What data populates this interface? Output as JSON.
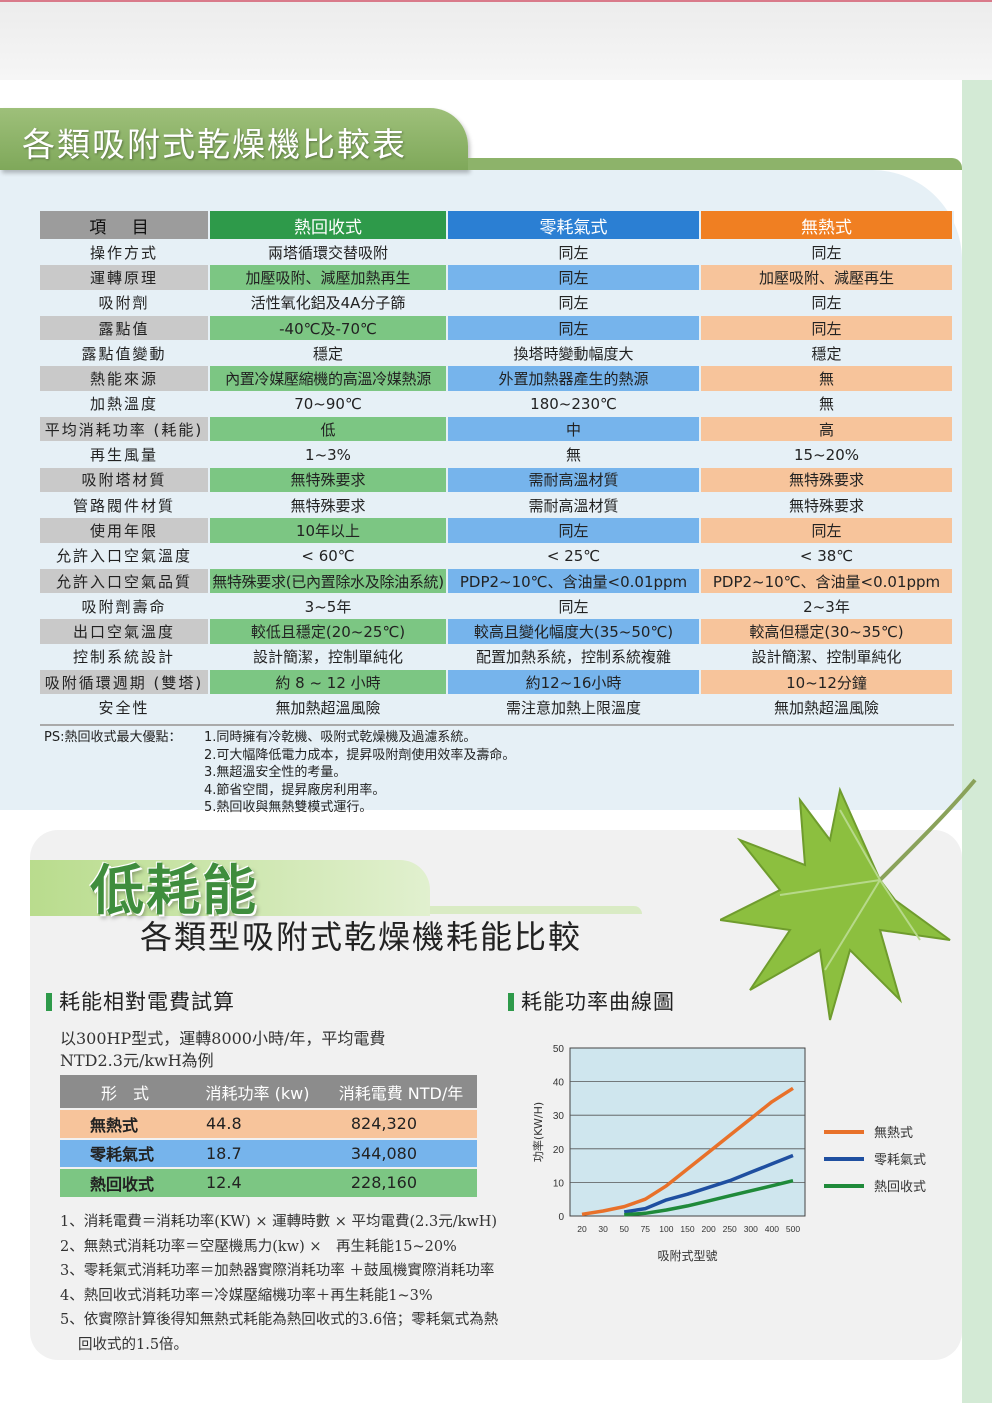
{
  "section1": {
    "title": "各類吸附式乾燥機比較表",
    "headers": [
      "項 目",
      "熱回收式",
      "零耗氣式",
      "無熱式"
    ],
    "rows": [
      [
        "操作方式",
        "兩塔循環交替吸附",
        "同左",
        "同左"
      ],
      [
        "運轉原理",
        "加壓吸附、減壓加熱再生",
        "同左",
        "加壓吸附、減壓再生"
      ],
      [
        "吸附劑",
        "活性氧化鋁及4A分子篩",
        "同左",
        "同左"
      ],
      [
        "露點值",
        "-40℃及-70℃",
        "同左",
        "同左"
      ],
      [
        "露點值變動",
        "穩定",
        "換塔時變動幅度大",
        "穩定"
      ],
      [
        "熱能來源",
        "內置冷媒壓縮機的高溫冷媒熱源",
        "外置加熱器產生的熱源",
        "無"
      ],
      [
        "加熱溫度",
        "70~90℃",
        "180~230℃",
        "無"
      ],
      [
        "平均消耗功率 (耗能)",
        "低",
        "中",
        "高"
      ],
      [
        "再生風量",
        "1~3%",
        "無",
        "15~20%"
      ],
      [
        "吸附塔材質",
        "無特殊要求",
        "需耐高溫材質",
        "無特殊要求"
      ],
      [
        "管路閥件材質",
        "無特殊要求",
        "需耐高溫材質",
        "無特殊要求"
      ],
      [
        "使用年限",
        "10年以上",
        "同左",
        "同左"
      ],
      [
        "允許入口空氣溫度",
        "< 60℃",
        "< 25℃",
        "< 38℃"
      ],
      [
        "允許入口空氣品質",
        "無特殊要求(已內置除水及除油系統)",
        "PDP2~10℃、含油量<0.01ppm",
        "PDP2~10℃、含油量<0.01ppm"
      ],
      [
        "吸附劑壽命",
        "3~5年",
        "同左",
        "2~3年"
      ],
      [
        "出口空氣溫度",
        "較低且穩定(20~25℃)",
        "較高且變化幅度大(35~50℃)",
        "較高但穩定(30~35℃)"
      ],
      [
        "控制系統設計",
        "設計簡潔，控制單純化",
        "配置加熱系統，控制系統複雜",
        "設計簡潔、控制單純化"
      ],
      [
        "吸附循環週期 (雙塔)",
        "約 8 ~ 12 小時",
        "約12~16小時",
        "10~12分鐘"
      ],
      [
        "安全性",
        "無加熱超溫風險",
        "需注意加熱上限溫度",
        "無加熱超溫風險"
      ]
    ],
    "ps_label": "PS:熱回收式最大優點：",
    "ps_items": [
      "1.同時擁有冷乾機、吸附式乾燥機及過濾系統。",
      "2.可大幅降低電力成本，提昇吸附劑使用效率及壽命。",
      "3.無超溫安全性的考量。",
      "4.節省空間，提昇廠房利用率。",
      "5.熱回收與無熱雙模式運行。"
    ]
  },
  "section2": {
    "banner": "低耗能",
    "title": "各類型吸附式乾燥機耗能比較",
    "cost_heading": "耗能相對電費試算",
    "curve_heading": "耗能功率曲線圖",
    "desc_line1": "以300HP型式，運轉8000小時/年，平均電費",
    "desc_line2": "NTD2.3元/kwH為例",
    "cost_table": {
      "headers": [
        "形　式",
        "消耗功率 (kw)",
        "消耗電費 NTD/年"
      ],
      "rows": [
        [
          "無熱式",
          "44.8",
          "824,320"
        ],
        [
          "零耗氣式",
          "18.7",
          "344,080"
        ],
        [
          "熱回收式",
          "12.4",
          "228,160"
        ]
      ]
    },
    "notes": [
      "1、消耗電費＝消耗功率(KW) × 運轉時數 × 平均電費(2.3元/kwH)",
      "2、無熱式消耗功率＝空壓機馬力(kw) ×　再生耗能15~20%",
      "3、零耗氣式消耗功率＝加熱器實際消耗功率 ＋鼓風機實際消耗功率",
      "4、熱回收式消耗功率＝冷媒壓縮機功率＋再生耗能1~3%",
      "5、依實際計算後得知無熱式耗能為熱回收式的3.6倍；零耗氣式為熱"
    ],
    "note5_cont": "回收式的1.5倍。"
  },
  "chart_data": {
    "type": "line",
    "x": [
      "20",
      "30",
      "50",
      "75",
      "100",
      "150",
      "200",
      "250",
      "300",
      "400",
      "500"
    ],
    "xlabel": "吸附式型號",
    "ylabel": "功率(KW/H)",
    "ylim": [
      0,
      50
    ],
    "yticks": [
      0,
      10,
      20,
      30,
      40,
      50
    ],
    "grid": true,
    "legend_position": "right",
    "series": [
      {
        "name": "無熱式",
        "color": "#e8712a",
        "values": [
          0.5,
          1.5,
          2.8,
          5,
          9,
          14,
          19,
          24,
          29,
          34,
          38
        ]
      },
      {
        "name": "零耗氣式",
        "color": "#1f4fa0",
        "values": [
          null,
          null,
          1.2,
          2.2,
          4.8,
          6.5,
          8.5,
          10.5,
          13,
          15.5,
          18
        ]
      },
      {
        "name": "熱回收式",
        "color": "#1f8a3a",
        "values": [
          null,
          null,
          0.4,
          0.8,
          1.8,
          3,
          4.5,
          6,
          7.5,
          9,
          10.5
        ]
      }
    ]
  }
}
